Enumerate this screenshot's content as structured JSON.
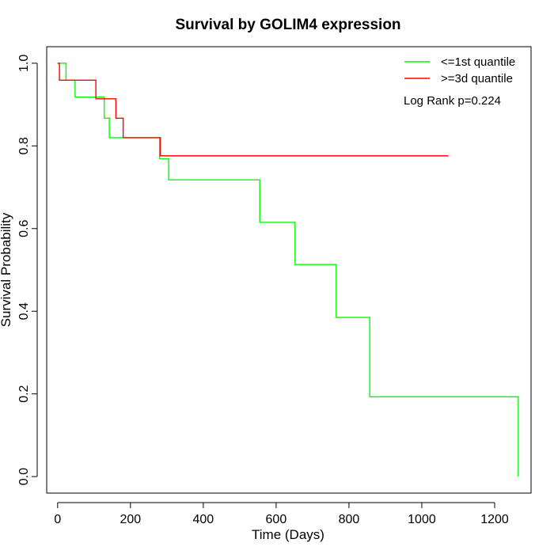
{
  "chart_data": {
    "type": "line",
    "title": "Survival by GOLIM4 expression",
    "xlabel": "Time (Days)",
    "ylabel": "Survival Probability",
    "xlim": [
      -30,
      1300
    ],
    "ylim": [
      -0.04,
      1.04
    ],
    "x_ticks": [
      0,
      200,
      400,
      600,
      800,
      1000,
      1200
    ],
    "y_ticks": [
      0.0,
      0.2,
      0.4,
      0.6,
      0.8,
      1.0
    ],
    "x_tick_labels": [
      "0",
      "200",
      "400",
      "600",
      "800",
      "1000",
      "1200"
    ],
    "y_tick_labels": [
      "0.0",
      "0.2",
      "0.4",
      "0.6",
      "0.8",
      "1.0"
    ],
    "grid": false,
    "legend_position": "top-right",
    "annotation": "Log Rank p=0.224",
    "series": [
      {
        "name": "<=1st quantile",
        "color": "#00ff00",
        "step": true,
        "x": [
          0,
          23,
          48,
          128,
          142,
          280,
          285,
          305,
          555,
          652,
          765,
          857,
          1265,
          1265
        ],
        "y": [
          1.0,
          0.959,
          0.918,
          0.867,
          0.82,
          0.769,
          0.769,
          0.718,
          0.615,
          0.513,
          0.385,
          0.193,
          0.193,
          0.0
        ]
      },
      {
        "name": ">=3d quantile",
        "color": "#ff0000",
        "step": true,
        "x": [
          0,
          5,
          105,
          160,
          180,
          282,
          1073
        ],
        "y": [
          1.0,
          0.959,
          0.914,
          0.867,
          0.82,
          0.776,
          0.776
        ]
      }
    ]
  }
}
